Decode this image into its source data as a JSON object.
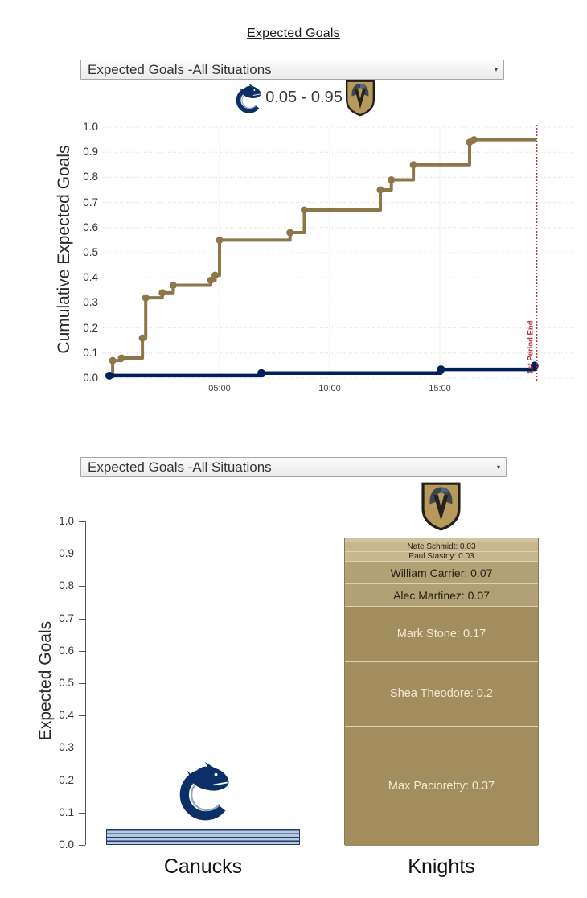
{
  "page_title": "Expected Goals",
  "top_section": {
    "dropdown_value": "Expected Goals -All Situations",
    "dropdown_arrow": "▾",
    "score": "0.05 - 0.95",
    "away_team": "Canucks",
    "home_team": "Knights"
  },
  "bottom_section": {
    "dropdown_value": "Expected Goals -All Situations",
    "dropdown_arrow": "▾"
  },
  "chart_data": [
    {
      "type": "line",
      "subtype": "cumulative-step",
      "title": "Expected Goals -All Situations",
      "xlabel": "",
      "ylabel": "Cumulative Expected Goals",
      "ylim": [
        0,
        1
      ],
      "grid": true,
      "y_ticks": [
        "0.0",
        "0.1",
        "0.2",
        "0.3",
        "0.4",
        "0.5",
        "0.6",
        "0.7",
        "0.8",
        "0.9",
        "1.0"
      ],
      "x_ticks": [
        {
          "t": 5,
          "label": "05:00"
        },
        {
          "t": 10,
          "label": "10:00"
        },
        {
          "t": 15,
          "label": "15:00"
        }
      ],
      "x_range_minutes": [
        0,
        19.4
      ],
      "annotation": {
        "label": "1st Period End",
        "t": 19.4,
        "color": "#b5353c"
      },
      "series": [
        {
          "name": "Golden Knights",
          "color": "#8d7748",
          "final": 0.95,
          "rise_from_zero": true,
          "points": [
            [
              0.15,
              0.07
            ],
            [
              0.55,
              0.08
            ],
            [
              1.5,
              0.16
            ],
            [
              1.65,
              0.32
            ],
            [
              2.4,
              0.34
            ],
            [
              2.9,
              0.37
            ],
            [
              4.6,
              0.39
            ],
            [
              4.8,
              0.41
            ],
            [
              5.0,
              0.55
            ],
            [
              8.2,
              0.58
            ],
            [
              8.85,
              0.67
            ],
            [
              12.3,
              0.75
            ],
            [
              12.8,
              0.79
            ],
            [
              13.8,
              0.85
            ],
            [
              16.35,
              0.94
            ],
            [
              16.55,
              0.95
            ]
          ]
        },
        {
          "name": "Canucks",
          "color": "#00205b",
          "final": 0.05,
          "rise_from_zero": false,
          "points": [
            [
              0,
              0.01
            ],
            [
              6.9,
              0.02
            ],
            [
              15.05,
              0.035
            ],
            [
              19.3,
              0.05
            ]
          ]
        }
      ]
    },
    {
      "type": "bar",
      "stacked": true,
      "title": "Expected Goals -All Situations",
      "xlabel": "",
      "ylabel": "Expected Goals",
      "ylim": [
        0,
        1
      ],
      "y_ticks": [
        "0.0",
        "0.1",
        "0.2",
        "0.3",
        "0.4",
        "0.5",
        "0.6",
        "0.7",
        "0.8",
        "0.9",
        "1.0"
      ],
      "categories": [
        "Canucks",
        "Knights"
      ],
      "bars": [
        {
          "team": "Canucks",
          "total": 0.05,
          "fill": "#b6c9de",
          "stripe": "#1d3a6b",
          "segments_bottom_to_top": []
        },
        {
          "team": "Knights",
          "total": 0.95,
          "fill": "#a28d5f",
          "segments_bottom_to_top": [
            {
              "name": "Max Pacioretty",
              "value": 0.37,
              "value_str": "0.37"
            },
            {
              "name": "Shea Theodore",
              "value": 0.2,
              "value_str": "0.2"
            },
            {
              "name": "Mark Stone",
              "value": 0.17,
              "value_str": "0.17"
            },
            {
              "name": "Alec Martinez",
              "value": 0.07,
              "value_str": "0.07"
            },
            {
              "name": "William Carrier",
              "value": 0.07,
              "value_str": "0.07"
            },
            {
              "name": "Paul Stastny",
              "value": 0.03,
              "value_str": "0.03"
            },
            {
              "name": "Nate Schmidt",
              "value": 0.03,
              "value_str": "0.03"
            },
            {
              "name": "",
              "value": 0.01,
              "value_str": ""
            }
          ]
        }
      ]
    }
  ]
}
